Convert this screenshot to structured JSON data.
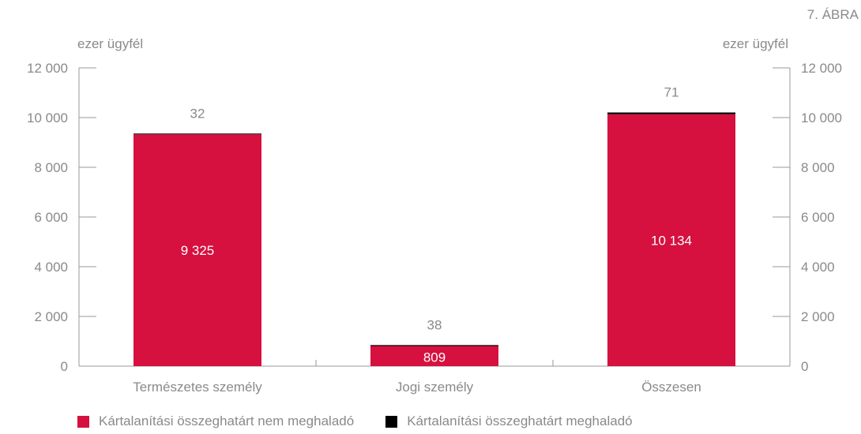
{
  "figure_label": "7. ÁBRA",
  "colors": {
    "primary": "#d6103f",
    "secondary": "#000000",
    "axis": "#9a9a9a",
    "text": "#8a8a8a",
    "label_inside": "#ffffff"
  },
  "chart_data": {
    "type": "bar",
    "stacked": true,
    "categories": [
      "Természetes személy",
      "Jogi személy",
      "Összesen"
    ],
    "series": [
      {
        "name": "Kártalanítási összeghatárt nem meghaladó",
        "values": [
          9325,
          809,
          10134
        ],
        "labels": [
          "9 325",
          "809",
          "10 134"
        ]
      },
      {
        "name": "Kártalanítási összeghatárt meghaladó",
        "values": [
          32,
          38,
          71
        ],
        "labels": [
          "32",
          "38",
          "71"
        ]
      }
    ],
    "ylabel_left": "ezer ügyfél",
    "ylabel_right": "ezer ügyfél",
    "ylim": [
      0,
      12000
    ],
    "yticks": [
      0,
      2000,
      4000,
      6000,
      8000,
      10000,
      12000
    ],
    "ytick_labels": [
      "0",
      "2 000",
      "4 000",
      "6 000",
      "8 000",
      "10 000",
      "12 000"
    ],
    "grid": false,
    "legend_position": "bottom"
  }
}
